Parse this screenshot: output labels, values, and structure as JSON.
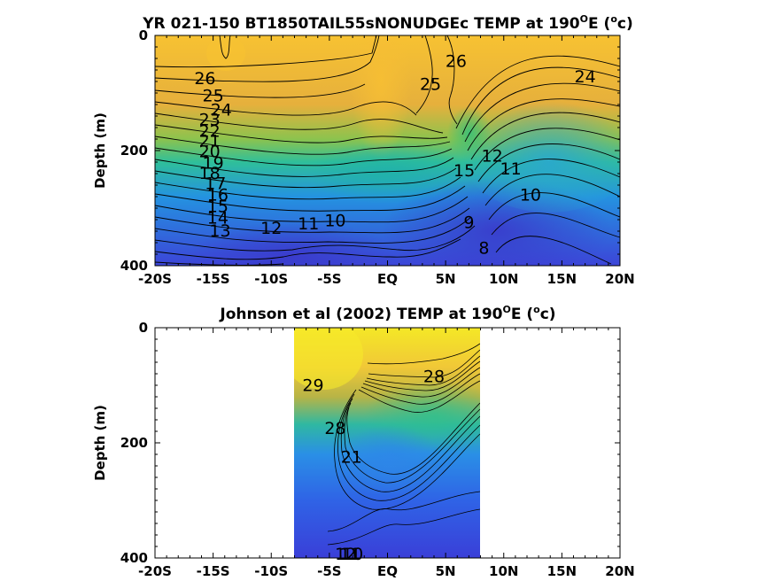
{
  "chart_data": [
    {
      "type": "heatmap",
      "title": "YR 021-150 BT1850TAIL55sNONUDGEc TEMP at 190",
      "title_sup": "O",
      "title_unit_open": "E (",
      "title_unit_sup": "o",
      "title_unit_close": "c)",
      "ylabel": "Depth (m)",
      "xlabel": "",
      "xlim": [
        -20,
        20
      ],
      "ylim": [
        400,
        0
      ],
      "xticks": [
        "-20S",
        "-15S",
        "-10S",
        "-5S",
        "EQ",
        "5N",
        "10N",
        "15N",
        "20N"
      ],
      "yticks": [
        "0",
        "200",
        "400"
      ],
      "colormap": [
        "#3a3fd9",
        "#2e7bf0",
        "#1fb2c9",
        "#35c583",
        "#a9c43a",
        "#e2b93a",
        "#f6c32c"
      ],
      "contour_labels": [
        {
          "text": "26",
          "x": -15.7,
          "y": 75
        },
        {
          "text": "25",
          "x": -15.0,
          "y": 105
        },
        {
          "text": "24",
          "x": -14.3,
          "y": 130
        },
        {
          "text": "23",
          "x": -15.3,
          "y": 147
        },
        {
          "text": "22",
          "x": -15.3,
          "y": 167
        },
        {
          "text": "21",
          "x": -15.3,
          "y": 184
        },
        {
          "text": "20",
          "x": -15.3,
          "y": 202
        },
        {
          "text": "19",
          "x": -15.0,
          "y": 222
        },
        {
          "text": "18",
          "x": -15.3,
          "y": 240
        },
        {
          "text": "17",
          "x": -14.8,
          "y": 258
        },
        {
          "text": "16",
          "x": -14.6,
          "y": 278
        },
        {
          "text": "15",
          "x": -14.6,
          "y": 298
        },
        {
          "text": "14",
          "x": -14.6,
          "y": 318
        },
        {
          "text": "13",
          "x": -14.4,
          "y": 340
        },
        {
          "text": "12",
          "x": -10.0,
          "y": 335
        },
        {
          "text": "11",
          "x": -6.8,
          "y": 328
        },
        {
          "text": "10",
          "x": -4.5,
          "y": 322
        },
        {
          "text": "26",
          "x": 5.9,
          "y": 45
        },
        {
          "text": "25",
          "x": 3.7,
          "y": 85
        },
        {
          "text": "24",
          "x": 17.0,
          "y": 72
        },
        {
          "text": "12",
          "x": 9.0,
          "y": 210
        },
        {
          "text": "11",
          "x": 10.6,
          "y": 232
        },
        {
          "text": "10",
          "x": 12.3,
          "y": 278
        },
        {
          "text": "9",
          "x": 7.0,
          "y": 325
        },
        {
          "text": "8",
          "x": 8.3,
          "y": 370
        },
        {
          "text": "15",
          "x": 6.6,
          "y": 235
        }
      ]
    },
    {
      "type": "heatmap",
      "title": "Johnson et al (2002) TEMP at 190",
      "title_sup": "O",
      "title_unit_open": "E (",
      "title_unit_sup": "o",
      "title_unit_close": "c)",
      "ylabel": "Depth (m)",
      "xlabel": "",
      "xlim": [
        -20,
        20
      ],
      "ylim": [
        400,
        0
      ],
      "data_extent_x": [
        -8,
        8
      ],
      "xticks": [
        "-20S",
        "-15S",
        "-10S",
        "-5S",
        "EQ",
        "5N",
        "10N",
        "15N",
        "20N"
      ],
      "yticks": [
        "0",
        "200",
        "400"
      ],
      "colormap": [
        "#3a3fd9",
        "#2e7bf0",
        "#1fb2c9",
        "#35c583",
        "#a9c43a",
        "#e2b93a",
        "#f4e826"
      ],
      "contour_labels": [
        {
          "text": "29",
          "x": -6.4,
          "y": 105
        },
        {
          "text": "28",
          "x": -4.5,
          "y": 180
        },
        {
          "text": "28",
          "x": 4.0,
          "y": 90
        },
        {
          "text": "21",
          "x": -3.1,
          "y": 230
        },
        {
          "text": "12",
          "x": -3.6,
          "y": 470
        },
        {
          "text": "11",
          "x": -3.2,
          "y": 550
        },
        {
          "text": "10",
          "x": -3.0,
          "y": 710
        }
      ]
    }
  ]
}
